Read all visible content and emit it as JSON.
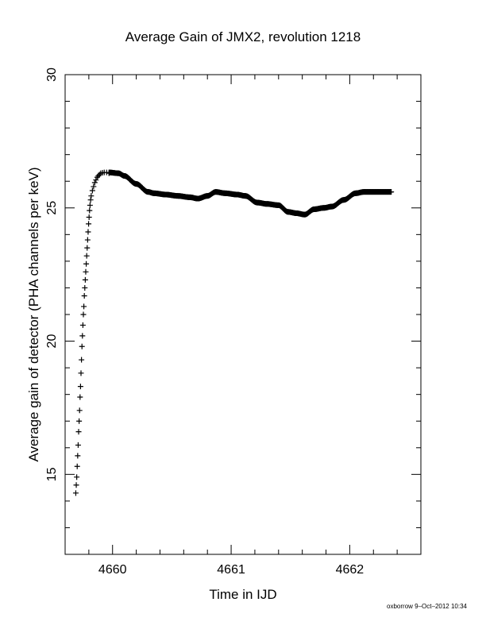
{
  "chart_data": {
    "type": "scatter",
    "title": "Average Gain of JMX2, revolution 1218",
    "xlabel": "Time in IJD",
    "ylabel": "Average gain of detector (PHA channels per keV)",
    "xlim": [
      4659.6,
      4662.6
    ],
    "ylim": [
      12,
      30
    ],
    "xticks": [
      4660,
      4661,
      4662
    ],
    "xtick_labels": [
      "4660",
      "4661",
      "4662"
    ],
    "yticks": [
      15,
      20,
      25,
      30
    ],
    "ytick_labels": [
      "15",
      "20",
      "25",
      "30"
    ],
    "x_minor_step": 0.2,
    "y_minor_step": 1,
    "marker": "plus",
    "grid": false,
    "series": [
      {
        "rise_x": [
          4659.69,
          4659.694,
          4659.698,
          4659.702,
          4659.706,
          4659.71,
          4659.714,
          4659.718,
          4659.722,
          4659.726,
          4659.73,
          4659.734,
          4659.738,
          4659.742,
          4659.746,
          4659.75,
          4659.754,
          4659.758,
          4659.762,
          4659.766,
          4659.77,
          4659.774,
          4659.778,
          4659.782,
          4659.786,
          4659.79,
          4659.794,
          4659.798,
          4659.802,
          4659.806,
          4659.81,
          4659.815,
          4659.82,
          4659.83,
          4659.84,
          4659.85,
          4659.86,
          4659.87,
          4659.88,
          4659.89,
          4659.9,
          4659.915,
          4659.93,
          4659.95,
          4659.97
        ],
        "rise_y": [
          14.3,
          14.6,
          14.9,
          15.3,
          15.7,
          16.1,
          16.6,
          17.0,
          17.4,
          17.9,
          18.3,
          18.8,
          19.3,
          19.8,
          20.2,
          20.6,
          21.0,
          21.3,
          21.7,
          22.0,
          22.3,
          22.6,
          22.9,
          23.2,
          23.5,
          23.8,
          24.1,
          24.4,
          24.65,
          24.9,
          25.1,
          25.3,
          25.45,
          25.65,
          25.8,
          25.95,
          26.05,
          26.15,
          26.2,
          26.25,
          26.3,
          26.32,
          26.33,
          26.33,
          26.3
        ],
        "plateau_x": [
          4659.97,
          4660.05,
          4660.1,
          4660.2,
          4660.3,
          4660.35,
          4660.45,
          4660.55,
          4660.65,
          4660.72,
          4660.8,
          4660.87,
          4660.95,
          4661.05,
          4661.12,
          4661.22,
          4661.3,
          4661.4,
          4661.48,
          4661.55,
          4661.62,
          4661.7,
          4661.78,
          4661.85,
          4661.95,
          4662.05,
          4662.12,
          4662.25,
          4662.35
        ],
        "plateau_y": [
          26.33,
          26.3,
          26.2,
          25.9,
          25.6,
          25.55,
          25.5,
          25.45,
          25.4,
          25.35,
          25.45,
          25.6,
          25.55,
          25.5,
          25.45,
          25.2,
          25.15,
          25.1,
          24.85,
          24.8,
          24.75,
          24.95,
          25.0,
          25.05,
          25.3,
          25.55,
          25.6,
          25.6,
          25.6
        ]
      }
    ]
  },
  "footer": {
    "stamp": "oxborrow 9–Oct–2012 10:34"
  }
}
